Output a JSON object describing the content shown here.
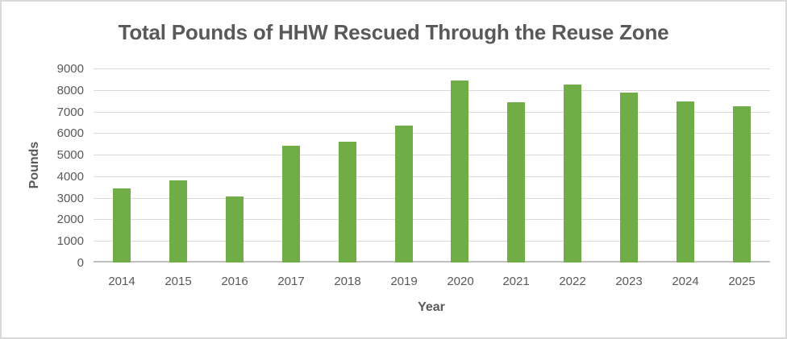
{
  "chart_data": {
    "type": "bar",
    "title": "Total Pounds of HHW Rescued Through the Reuse Zone",
    "xlabel": "Year",
    "ylabel": "Pounds",
    "categories": [
      "2014",
      "2015",
      "2016",
      "2017",
      "2018",
      "2019",
      "2020",
      "2021",
      "2022",
      "2023",
      "2024",
      "2025"
    ],
    "values": [
      3450,
      3800,
      3050,
      5430,
      5610,
      6350,
      8430,
      7430,
      8240,
      7880,
      7460,
      7260
    ],
    "ylim": [
      0,
      9000
    ],
    "ytick_step": 1000,
    "grid": true,
    "legend": false,
    "colors": {
      "bar": "#70AD47",
      "gridline": "#D9D9D9",
      "axis_line": "#BFBFBF",
      "text": "#595959",
      "canvas_border": "#D9D9D9"
    }
  }
}
